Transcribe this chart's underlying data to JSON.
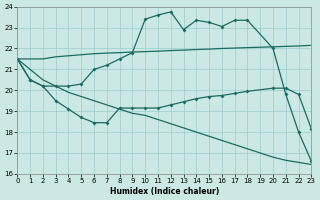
{
  "xlabel": "Humidex (Indice chaleur)",
  "xlim": [
    0,
    23
  ],
  "ylim": [
    16,
    24
  ],
  "yticks": [
    16,
    17,
    18,
    19,
    20,
    21,
    22,
    23,
    24
  ],
  "xticks": [
    0,
    1,
    2,
    3,
    4,
    5,
    6,
    7,
    8,
    9,
    10,
    11,
    12,
    13,
    14,
    15,
    16,
    17,
    18,
    19,
    20,
    21,
    22,
    23
  ],
  "bg_color": "#cce8e4",
  "grid_color": "#99cccc",
  "line_color": "#1a6b60",
  "line1_x": [
    0,
    1,
    2,
    3,
    4,
    5,
    6,
    7,
    8,
    9,
    10,
    11,
    12,
    13,
    14,
    15,
    16,
    17,
    18,
    20,
    21,
    22,
    23
  ],
  "line1_y": [
    21.5,
    20.5,
    20.2,
    20.2,
    20.2,
    20.3,
    21.0,
    21.2,
    21.5,
    21.8,
    23.4,
    23.6,
    23.75,
    22.9,
    23.35,
    23.25,
    23.05,
    23.35,
    23.35,
    22.0,
    19.8,
    18.0,
    16.6
  ],
  "line2_x": [
    0,
    1,
    2,
    3,
    4,
    5,
    6,
    7,
    8,
    9,
    10,
    11,
    12,
    13,
    14,
    15,
    16,
    17,
    18,
    19,
    20,
    21,
    22,
    23
  ],
  "line2_y": [
    21.5,
    21.5,
    21.5,
    21.6,
    21.65,
    21.7,
    21.75,
    21.78,
    21.8,
    21.83,
    21.85,
    21.87,
    21.9,
    21.92,
    21.95,
    21.97,
    22.0,
    22.02,
    22.04,
    22.06,
    22.08,
    22.1,
    22.12,
    22.15
  ],
  "line3_x": [
    0,
    1,
    2,
    3,
    4,
    5,
    6,
    7,
    8,
    9,
    10,
    11,
    12,
    13,
    14,
    15,
    16,
    17,
    18,
    19,
    20,
    21,
    22,
    23
  ],
  "line3_y": [
    21.5,
    21.0,
    20.5,
    20.2,
    19.9,
    19.7,
    19.5,
    19.3,
    19.1,
    18.9,
    18.8,
    18.6,
    18.4,
    18.2,
    18.0,
    17.8,
    17.6,
    17.4,
    17.2,
    17.0,
    16.8,
    16.65,
    16.55,
    16.45
  ],
  "line4_x": [
    0,
    1,
    2,
    3,
    4,
    5,
    6,
    7,
    8,
    9,
    10,
    11,
    12,
    13,
    14,
    15,
    16,
    17,
    18,
    20,
    21,
    22,
    23
  ],
  "line4_y": [
    21.5,
    20.5,
    20.2,
    19.5,
    19.1,
    18.7,
    18.45,
    18.45,
    19.15,
    19.15,
    19.15,
    19.15,
    19.3,
    19.45,
    19.6,
    19.7,
    19.75,
    19.85,
    19.95,
    20.1,
    20.1,
    19.8,
    18.15
  ],
  "markers_on_1": true,
  "markers_on_4": true
}
